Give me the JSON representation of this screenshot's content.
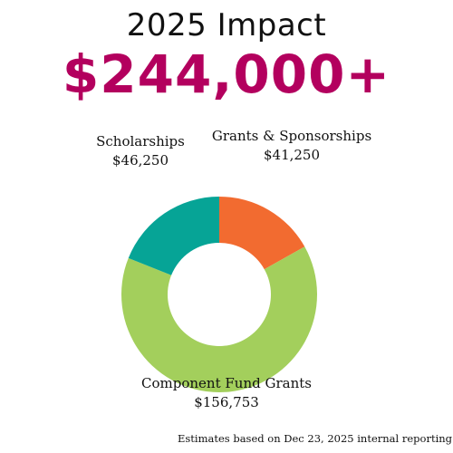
{
  "header": {
    "title": "2025 Impact",
    "amount": "$244,000+"
  },
  "chart_data": {
    "type": "pie",
    "donut": true,
    "title": "2025 Impact",
    "slices": [
      {
        "label": "Grants & Sponsorships",
        "value_label": "$41,250",
        "value": 41250,
        "color": "#f26b30"
      },
      {
        "label": "Component Fund Grants",
        "value_label": "$156,753",
        "value": 156753,
        "color": "#a3cf5c"
      },
      {
        "label": "Scholarships",
        "value_label": "$46,250",
        "value": 46250,
        "color": "#06a496"
      }
    ]
  },
  "footnote": "Estimates based on Dec 23, 2025 internal reporting"
}
